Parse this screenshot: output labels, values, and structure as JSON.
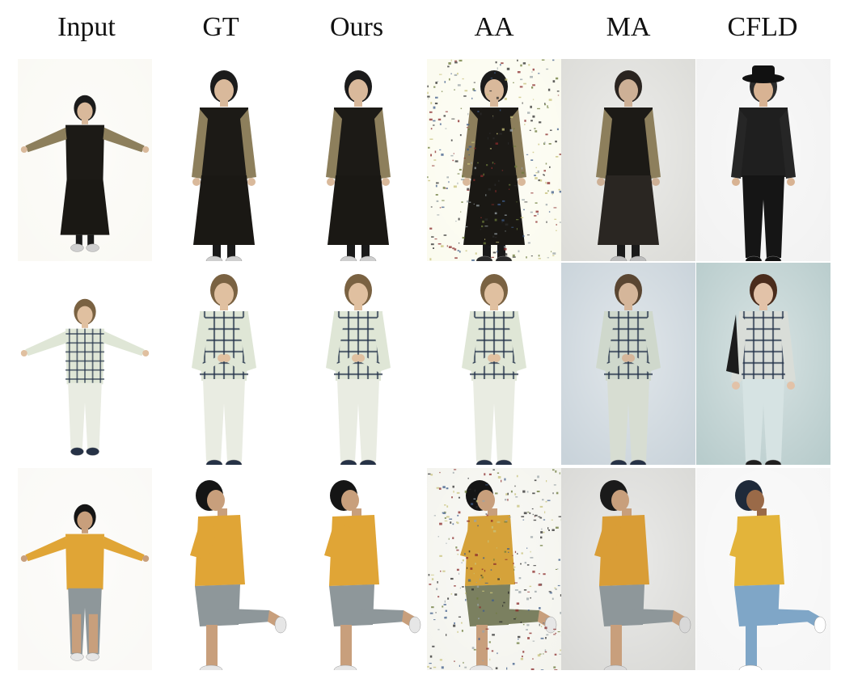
{
  "columns": [
    "Input",
    "GT",
    "Ours",
    "AA",
    "MA",
    "CFLD"
  ],
  "rows": [
    {
      "subject": "woman-dark-dress",
      "cells": [
        {
          "bg": "#faf9f4",
          "pose": "tpose",
          "hair": "#1b1b1b",
          "skin": "#d9b99b",
          "top": "#1c1a16",
          "sleeve": "#8d7f5c",
          "bottom": "#1a1814",
          "dress": true,
          "shoes": "#cfcfcf"
        },
        {
          "bg": "#ffffff",
          "pose": "stand",
          "hair": "#1b1b1b",
          "skin": "#d9b99b",
          "top": "#1c1a16",
          "sleeve": "#8d7f5c",
          "bottom": "#1a1814",
          "dress": true,
          "shoes": "#cfcfcf"
        },
        {
          "bg": "#ffffff",
          "pose": "stand",
          "hair": "#1b1b1b",
          "skin": "#d9b99b",
          "top": "#1c1a16",
          "sleeve": "#8d7f5c",
          "bottom": "#1a1814",
          "dress": true,
          "shoes": "#cfcfcf"
        },
        {
          "bg": "#fbfbef",
          "pose": "stand",
          "hair": "#1b1b1b",
          "skin": "#d9b99b",
          "top": "#1c1a16",
          "sleeve": "#8d7f5c",
          "bottom": "#1a1814",
          "dress": true,
          "shoes": "#2a2a2a",
          "noise": true
        },
        {
          "bg": "#dcdcd8",
          "pose": "stand",
          "hair": "#2a2420",
          "skin": "#cdb096",
          "top": "#1c1a16",
          "sleeve": "#8d7f5c",
          "bottom": "#2a2622",
          "dress": true,
          "shoes": "#bdbdbd"
        },
        {
          "bg": "#f2f2f2",
          "pose": "stand",
          "hair": "#2b2b2b",
          "skin": "#d8b393",
          "top": "#1f1f1f",
          "sleeve": "#262626",
          "bottom": "#151515",
          "dress": false,
          "shoes": "#111111",
          "hat": true
        }
      ]
    },
    {
      "subject": "man-plaid-shirt",
      "cells": [
        {
          "bg": "#ffffff",
          "pose": "tpose",
          "hair": "#7a6242",
          "skin": "#e0c0a0",
          "top": "#dfe6d6",
          "sleeve": "#dfe6d6",
          "bottom": "#e9ece2",
          "dress": false,
          "shoes": "#263246",
          "plaid": true
        },
        {
          "bg": "#ffffff",
          "pose": "hands",
          "hair": "#7a6242",
          "skin": "#e0c0a0",
          "top": "#dfe6d6",
          "sleeve": "#dfe6d6",
          "bottom": "#e9ece2",
          "dress": false,
          "shoes": "#263246",
          "plaid": true
        },
        {
          "bg": "#ffffff",
          "pose": "hands",
          "hair": "#7a6242",
          "skin": "#e0c0a0",
          "top": "#dfe6d6",
          "sleeve": "#dfe6d6",
          "bottom": "#e9ece2",
          "dress": false,
          "shoes": "#263246",
          "plaid": true
        },
        {
          "bg": "#ffffff",
          "pose": "hands",
          "hair": "#7a6242",
          "skin": "#e0c0a0",
          "top": "#dfe6d6",
          "sleeve": "#dfe6d6",
          "bottom": "#e9ece2",
          "dress": false,
          "shoes": "#263246",
          "plaid": true
        },
        {
          "bg": "#c9d3da",
          "pose": "hands",
          "hair": "#5a4632",
          "skin": "#d5b69a",
          "top": "#cfd8cc",
          "sleeve": "#cfd8cc",
          "bottom": "#d7ddd2",
          "dress": false,
          "shoes": "#263246",
          "plaid": true
        },
        {
          "bg": "#b8cccc",
          "pose": "stand",
          "hair": "#4a2c1c",
          "skin": "#e2c2a8",
          "top": "#d9ddd8",
          "sleeve": "#d9ddd8",
          "bottom": "#d6e3e3",
          "dress": false,
          "shoes": "#1f1f1f",
          "plaid": true,
          "bag": true
        }
      ]
    },
    {
      "subject": "man-yellow-tshirt",
      "cells": [
        {
          "bg": "#faf9f6",
          "pose": "tpose",
          "hair": "#151515",
          "skin": "#c89f7c",
          "top": "#e0a536",
          "sleeve": "#e0a536",
          "bottom": "#8e979a",
          "dress": false,
          "shoes": "#e6e6e6",
          "short": true
        },
        {
          "bg": "#ffffff",
          "pose": "side",
          "hair": "#151515",
          "skin": "#c89f7c",
          "top": "#e0a536",
          "sleeve": "#e0a536",
          "bottom": "#8e979a",
          "dress": false,
          "shoes": "#e6e6e6",
          "short": true
        },
        {
          "bg": "#ffffff",
          "pose": "side",
          "hair": "#151515",
          "skin": "#c89f7c",
          "top": "#e0a536",
          "sleeve": "#e0a536",
          "bottom": "#8e979a",
          "dress": false,
          "shoes": "#e6e6e6",
          "short": true
        },
        {
          "bg": "#f4f4ee",
          "pose": "side",
          "hair": "#151515",
          "skin": "#c89f7c",
          "top": "#d5a23a",
          "sleeve": "#d5a23a",
          "bottom": "#7b8060",
          "dress": false,
          "shoes": "#e6e6e6",
          "short": true,
          "noise": true
        },
        {
          "bg": "#d9d9d6",
          "pose": "side",
          "hair": "#1a1a1a",
          "skin": "#c89f7c",
          "top": "#d99d36",
          "sleeve": "#d99d36",
          "bottom": "#8e979a",
          "dress": false,
          "shoes": "#d8d8d8",
          "short": true
        },
        {
          "bg": "#f6f6f6",
          "pose": "side",
          "hair": "#1f2a3a",
          "skin": "#9a6a48",
          "top": "#e3b43a",
          "sleeve": "#e3b43a",
          "bottom": "#7fa6c7",
          "dress": false,
          "shoes": "#ffffff",
          "short": false
        }
      ]
    }
  ]
}
